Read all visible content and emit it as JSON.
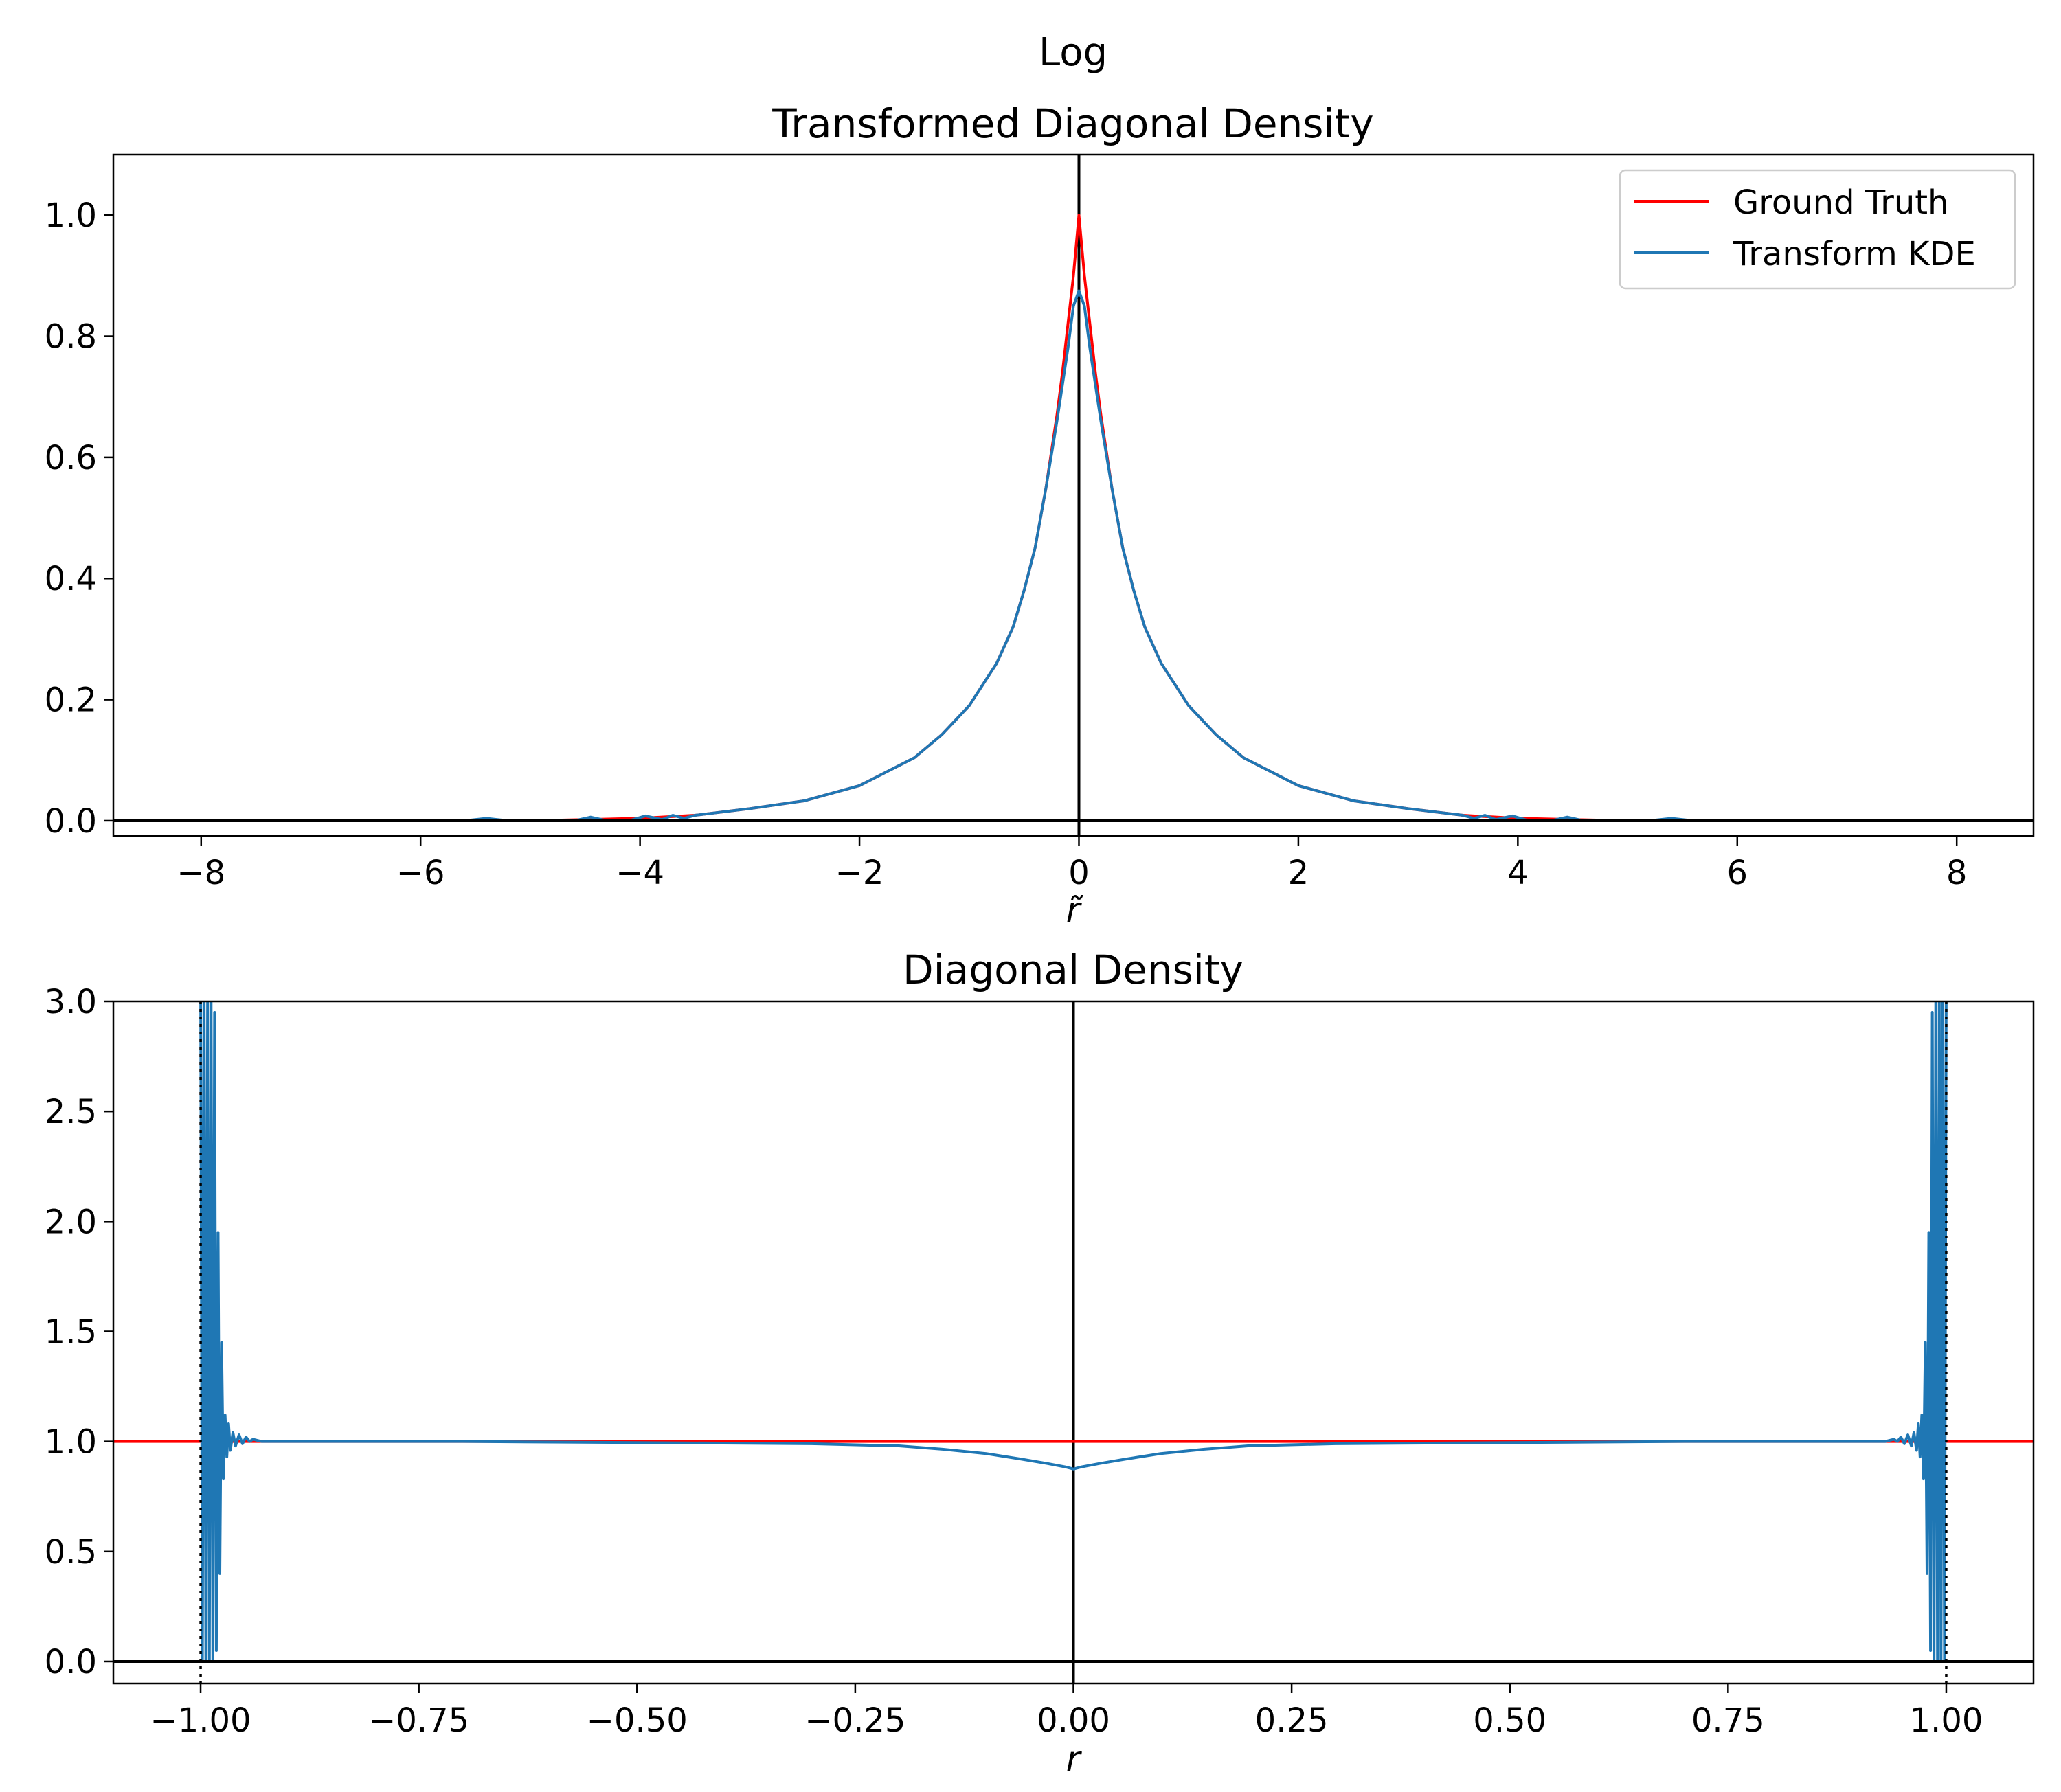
{
  "suptitle": "Log",
  "colors": {
    "ground_truth": "#ff0000",
    "kde": "#1f77b4",
    "axis": "#000000"
  },
  "chart_data": [
    {
      "type": "line",
      "title": "Transformed Diagonal Density",
      "xlabel": "r̃",
      "ylabel": "",
      "xlim": [
        -8.8,
        8.7
      ],
      "ylim": [
        -0.025,
        1.1
      ],
      "xticks": [
        -8,
        -6,
        -4,
        -2,
        0,
        2,
        4,
        6,
        8
      ],
      "xtick_labels": [
        "−8",
        "−6",
        "−4",
        "−2",
        "0",
        "2",
        "4",
        "6",
        "8"
      ],
      "yticks": [
        0.0,
        0.2,
        0.4,
        0.6,
        0.8,
        1.0
      ],
      "ytick_labels": [
        "0.0",
        "0.2",
        "0.4",
        "0.6",
        "0.8",
        "1.0"
      ],
      "grid": false,
      "legend": "upper right",
      "reference_lines": {
        "vertical_x": [
          0
        ],
        "horizontal_y": [
          0
        ],
        "dotted_x": []
      },
      "series": [
        {
          "name": "Ground Truth",
          "color": "#ff0000",
          "x": [
            -8,
            -6,
            -5,
            -4.5,
            -4,
            -3.5,
            -3,
            -2.5,
            -2,
            -1.5,
            -1.25,
            -1,
            -0.75,
            -0.6,
            -0.5,
            -0.4,
            -0.3,
            -0.2,
            -0.15,
            -0.1,
            -0.05,
            0,
            0.05,
            0.1,
            0.15,
            0.2,
            0.3,
            0.4,
            0.5,
            0.6,
            0.75,
            1,
            1.25,
            1.5,
            2,
            2.5,
            3,
            3.5,
            4,
            4.5,
            5,
            6,
            8
          ],
          "y": [
            0.0,
            0.0,
            0.0,
            0.002,
            0.004,
            0.009,
            0.02,
            0.033,
            0.058,
            0.104,
            0.142,
            0.19,
            0.26,
            0.32,
            0.38,
            0.45,
            0.55,
            0.67,
            0.74,
            0.82,
            0.9,
            1.0,
            0.9,
            0.82,
            0.74,
            0.67,
            0.55,
            0.45,
            0.38,
            0.32,
            0.26,
            0.19,
            0.142,
            0.104,
            0.058,
            0.033,
            0.02,
            0.009,
            0.004,
            0.002,
            0.0,
            0.0,
            0.0
          ]
        },
        {
          "name": "Transform KDE",
          "color": "#1f77b4",
          "x": [
            -8,
            -6,
            -5.6,
            -5.4,
            -5.2,
            -4.6,
            -4.45,
            -4.3,
            -4.1,
            -3.95,
            -3.8,
            -3.7,
            -3.6,
            -3.5,
            -3,
            -2.5,
            -2,
            -1.5,
            -1.25,
            -1,
            -0.75,
            -0.6,
            -0.5,
            -0.4,
            -0.3,
            -0.2,
            -0.1,
            -0.05,
            0,
            0.05,
            0.1,
            0.2,
            0.3,
            0.4,
            0.5,
            0.6,
            0.75,
            1,
            1.25,
            1.5,
            2,
            2.5,
            3,
            3.5,
            3.6,
            3.7,
            3.8,
            3.95,
            4.1,
            4.3,
            4.45,
            4.6,
            5.2,
            5.4,
            5.6,
            6,
            8
          ],
          "y": [
            0.0,
            0.0,
            0.0,
            0.004,
            0.0,
            0.0,
            0.006,
            0.0,
            0.0,
            0.008,
            0.002,
            0.009,
            0.004,
            0.009,
            0.02,
            0.033,
            0.058,
            0.104,
            0.142,
            0.19,
            0.26,
            0.32,
            0.38,
            0.45,
            0.55,
            0.66,
            0.78,
            0.85,
            0.875,
            0.85,
            0.78,
            0.66,
            0.55,
            0.45,
            0.38,
            0.32,
            0.26,
            0.19,
            0.142,
            0.104,
            0.058,
            0.033,
            0.02,
            0.009,
            0.004,
            0.009,
            0.002,
            0.008,
            0.0,
            0.0,
            0.006,
            0.0,
            0.0,
            0.004,
            0.0,
            0.0,
            0.0
          ]
        }
      ]
    },
    {
      "type": "line",
      "title": "Diagonal Density",
      "xlabel": "r",
      "ylabel": "",
      "xlim": [
        -1.1,
        1.1
      ],
      "ylim": [
        -0.1,
        3.0
      ],
      "xticks": [
        -1.0,
        -0.75,
        -0.5,
        -0.25,
        0.0,
        0.25,
        0.5,
        0.75,
        1.0
      ],
      "xtick_labels": [
        "−1.00",
        "−0.75",
        "−0.50",
        "−0.25",
        "0.00",
        "0.25",
        "0.50",
        "0.75",
        "1.00"
      ],
      "yticks": [
        0.0,
        0.5,
        1.0,
        1.5,
        2.0,
        2.5,
        3.0
      ],
      "ytick_labels": [
        "0.0",
        "0.5",
        "1.0",
        "1.5",
        "2.0",
        "2.5",
        "3.0"
      ],
      "grid": false,
      "legend": "none",
      "reference_lines": {
        "vertical_x": [
          0
        ],
        "horizontal_y": [
          0
        ],
        "dotted_x": [
          -1.0,
          1.0
        ]
      },
      "series": [
        {
          "name": "Ground Truth",
          "color": "#ff0000",
          "x": [
            -1.1,
            1.1
          ],
          "y": [
            1.0,
            1.0
          ]
        },
        {
          "name": "Transform KDE",
          "color": "#1f77b4",
          "x": [
            -0.9999,
            -0.998,
            -0.996,
            -0.994,
            -0.992,
            -0.99,
            -0.988,
            -0.986,
            -0.984,
            -0.982,
            -0.98,
            -0.978,
            -0.976,
            -0.974,
            -0.972,
            -0.97,
            -0.968,
            -0.966,
            -0.963,
            -0.96,
            -0.956,
            -0.952,
            -0.948,
            -0.944,
            -0.94,
            -0.93,
            -0.9,
            -0.7,
            -0.5,
            -0.3,
            -0.2,
            -0.15,
            -0.1,
            -0.06,
            -0.03,
            -0.01,
            0,
            0.01,
            0.03,
            0.06,
            0.1,
            0.15,
            0.2,
            0.3,
            0.5,
            0.7,
            0.9,
            0.93,
            0.94,
            0.944,
            0.948,
            0.952,
            0.956,
            0.96,
            0.963,
            0.966,
            0.968,
            0.97,
            0.972,
            0.974,
            0.976,
            0.978,
            0.98,
            0.982,
            0.984,
            0.986,
            0.988,
            0.99,
            0.992,
            0.994,
            0.996,
            0.998,
            0.9999
          ],
          "y": [
            3.0,
            0.0,
            3.0,
            0.0,
            3.0,
            0.0,
            3.0,
            0.0,
            2.95,
            0.05,
            1.95,
            0.4,
            1.45,
            0.83,
            1.12,
            0.93,
            1.08,
            0.96,
            1.04,
            0.98,
            1.03,
            0.99,
            1.02,
            1.0,
            1.01,
            1.0,
            1.0,
            1.0,
            0.995,
            0.99,
            0.98,
            0.965,
            0.945,
            0.92,
            0.9,
            0.885,
            0.875,
            0.885,
            0.9,
            0.92,
            0.945,
            0.965,
            0.98,
            0.99,
            0.995,
            1.0,
            1.0,
            1.0,
            1.01,
            1.0,
            1.02,
            0.99,
            1.03,
            0.98,
            1.04,
            0.96,
            1.08,
            0.93,
            1.12,
            0.83,
            1.45,
            0.4,
            1.95,
            0.05,
            2.95,
            0.0,
            3.0,
            0.0,
            3.0,
            0.0,
            3.0,
            0.0,
            3.0
          ]
        }
      ]
    }
  ]
}
